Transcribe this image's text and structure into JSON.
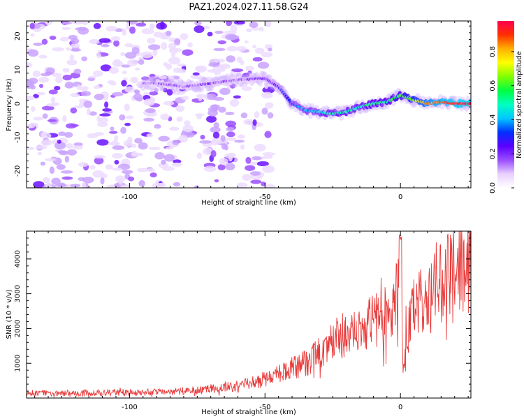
{
  "figure": {
    "title": "PAZ1.2024.027.11.58.G24"
  },
  "chart_data": [
    {
      "type": "heatmap",
      "xlabel": "Height of straight line (km)",
      "ylabel": "Frequency (Hz)",
      "xlim": [
        -138,
        26
      ],
      "ylim": [
        -25,
        24.5
      ],
      "x_ticks": [
        -100,
        -50,
        0
      ],
      "y_ticks": [
        -20,
        -10,
        0,
        10,
        20
      ],
      "colorbar": {
        "label": "Normalized spectral amplitude",
        "range": [
          0,
          0.98
        ],
        "ticks": [
          0.0,
          0.2,
          0.4,
          0.6,
          0.8
        ],
        "colormap": [
          "#ffffff",
          "#e8d0ff",
          "#9a4cff",
          "#5a00ff",
          "#0030ff",
          "#00c8ff",
          "#00ffc0",
          "#00ff40",
          "#80ff00",
          "#ffff00",
          "#ffb000",
          "#ff3000",
          "#ff0050"
        ]
      },
      "ridge": {
        "description_points_x": [
          -90,
          -80,
          -70,
          -60,
          -50,
          -45,
          -40,
          -35,
          -30,
          -25,
          -20,
          -15,
          -10,
          -5,
          0,
          5,
          10,
          15,
          20,
          26
        ],
        "description_points_y": [
          6,
          5,
          6,
          7,
          7.5,
          5,
          0,
          -2,
          -2.5,
          -3,
          -2.5,
          -1,
          0,
          0.5,
          2.5,
          1,
          0,
          0.5,
          0,
          0
        ],
        "amplitude": [
          0.15,
          0.15,
          0.18,
          0.15,
          0.2,
          0.25,
          0.35,
          0.4,
          0.45,
          0.5,
          0.5,
          0.5,
          0.55,
          0.55,
          0.6,
          0.7,
          0.85,
          0.9,
          0.95,
          0.95
        ]
      }
    },
    {
      "type": "line",
      "xlabel": "Height of straight line (km)",
      "ylabel": "SNR (10 * v/v)",
      "xlim": [
        -138,
        26
      ],
      "ylim": [
        0,
        4800
      ],
      "x_ticks": [
        -100,
        -50,
        0
      ],
      "y_ticks": [
        1000,
        2000,
        3000,
        4000
      ],
      "series": [
        {
          "color": "#e83a3a",
          "trend_x": [
            -138,
            -120,
            -100,
            -90,
            -80,
            -70,
            -60,
            -55,
            -50,
            -45,
            -40,
            -35,
            -30,
            -25,
            -20,
            -15,
            -10,
            -5,
            -2,
            0,
            1,
            2,
            5,
            10,
            15,
            20,
            26
          ],
          "trend_y": [
            150,
            150,
            160,
            170,
            200,
            270,
            350,
            420,
            550,
            700,
            850,
            1000,
            1300,
            1600,
            1900,
            2100,
            2250,
            2350,
            2400,
            4500,
            1000,
            1800,
            2600,
            3100,
            3400,
            3600,
            3800
          ]
        }
      ]
    }
  ]
}
